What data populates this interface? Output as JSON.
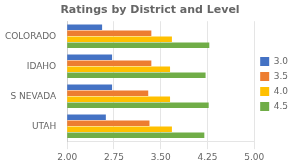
{
  "chart_data": {
    "type": "bar",
    "orientation": "horizontal",
    "title": "Ratings by District and Level",
    "categories": [
      "COLORADO",
      "IDAHO",
      "S NEVADA",
      "UTAH"
    ],
    "series": [
      {
        "name": "3.0",
        "color": "#4472C4",
        "values": [
          2.56,
          2.72,
          2.72,
          2.62
        ]
      },
      {
        "name": "3.5",
        "color": "#ED7D31",
        "values": [
          3.35,
          3.35,
          3.3,
          3.32
        ]
      },
      {
        "name": "4.0",
        "color": "#FFC000",
        "values": [
          3.68,
          3.65,
          3.65,
          3.68
        ]
      },
      {
        "name": "4.5",
        "color": "#70AD47",
        "values": [
          4.28,
          4.22,
          4.27,
          4.2
        ]
      }
    ],
    "xlim": [
      2.0,
      5.0
    ],
    "xticks": [
      {
        "value": 2.0,
        "label": "2.00"
      },
      2.75,
      {
        "value": 3.5,
        "label": "3.50"
      },
      4.25,
      {
        "value": 5.0,
        "label": "5.00"
      }
    ],
    "grid": true,
    "legend": "right"
  }
}
